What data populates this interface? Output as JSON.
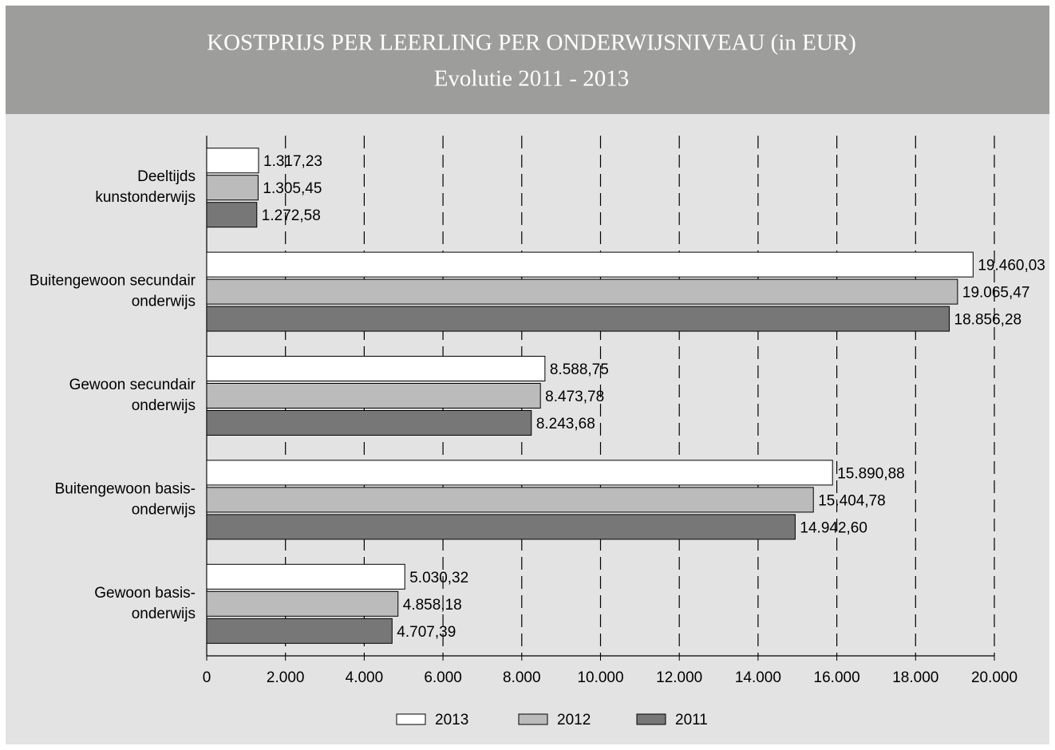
{
  "chart_data": {
    "type": "hbar",
    "title": "KOSTPRIJS PER LEERLING PER ONDERWIJSNIVEAU (in EUR)",
    "subtitle": "Evolutie 2011 - 2013",
    "categories": [
      [
        "Deeltijds",
        "kunstonderwijs"
      ],
      [
        "Buitengewoon secundair",
        "onderwijs"
      ],
      [
        "Gewoon secundair",
        "onderwijs"
      ],
      [
        "Buitengewoon basis-",
        "onderwijs"
      ],
      [
        "Gewoon basis-",
        "onderwijs"
      ]
    ],
    "series": [
      {
        "name": "2013",
        "color": "#ffffff",
        "values": [
          1317.23,
          19460.03,
          8588.75,
          15890.88,
          5030.32
        ],
        "value_labels": [
          "1.317,23",
          "19.460,03",
          "8.588,75",
          "15.890,88",
          "5.030,32"
        ]
      },
      {
        "name": "2012",
        "color": "#bbbbbb",
        "values": [
          1305.45,
          19065.47,
          8473.78,
          15404.78,
          4858.18
        ],
        "value_labels": [
          "1.305,45",
          "19.065,47",
          "8.473,78",
          "15.404,78",
          "4.858,18"
        ]
      },
      {
        "name": "2011",
        "color": "#777777",
        "values": [
          1272.58,
          18856.28,
          8243.68,
          14942.6,
          4707.39
        ],
        "value_labels": [
          "1.272,58",
          "18.856,28",
          "8.243,68",
          "14.942,60",
          "4.707,39"
        ]
      }
    ],
    "xlim": [
      0,
      20000
    ],
    "xticks": [
      0,
      {
        "value": 2000,
        "label": "2.000"
      },
      {
        "value": 4000,
        "label": "4.000"
      },
      {
        "value": 6000,
        "label": "6.000"
      },
      {
        "value": 8000,
        "label": "8.000"
      },
      {
        "value": 10000,
        "label": "10.000"
      },
      {
        "value": 12000,
        "label": "12.000"
      },
      {
        "value": 14000,
        "label": "14.000"
      },
      {
        "value": 16000,
        "label": "16.000"
      },
      {
        "value": 18000,
        "label": "18.000"
      },
      {
        "value": 20000,
        "label": "20.000"
      }
    ],
    "grid": true,
    "legend": "bottom"
  }
}
